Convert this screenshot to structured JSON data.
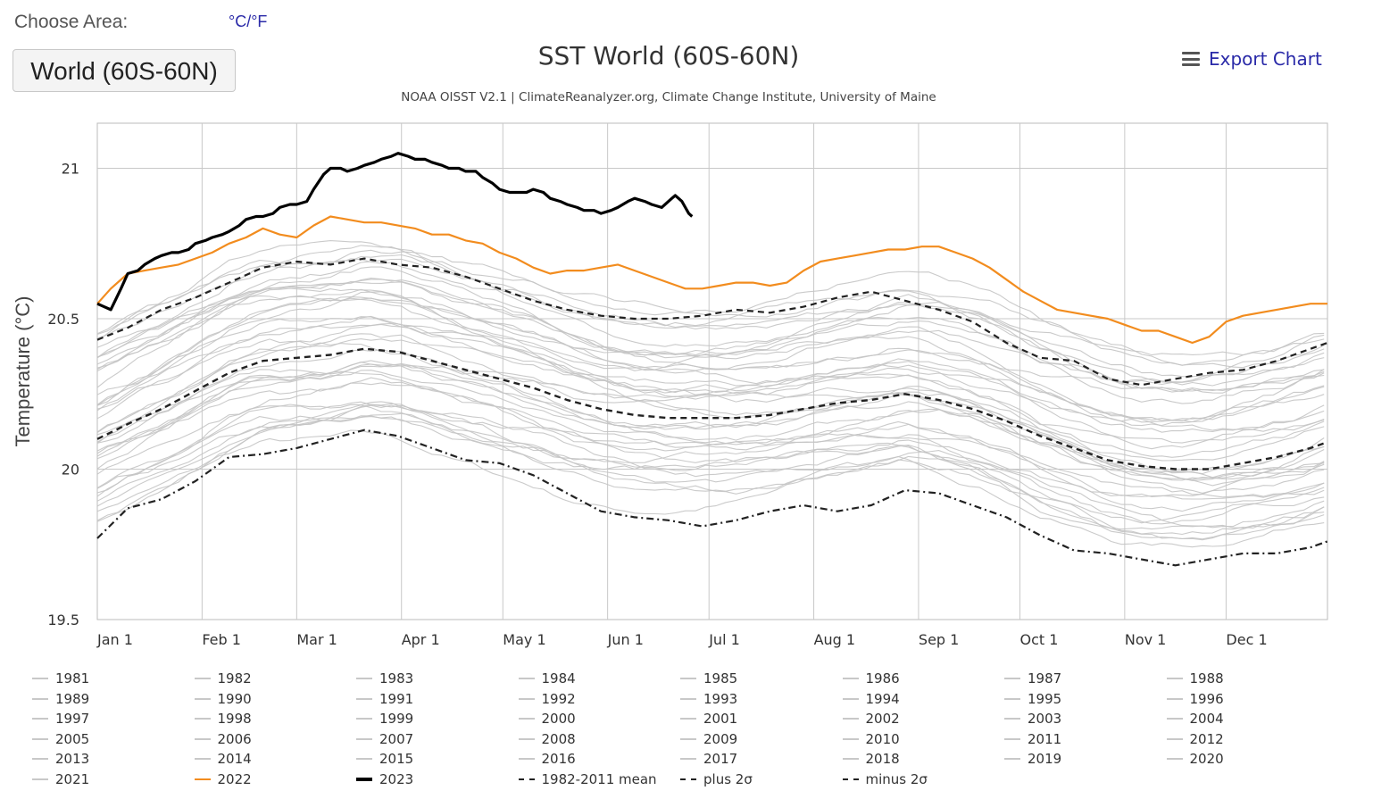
{
  "header": {
    "choose_area_label": "Choose Area:",
    "unit_toggle": "°C/°F",
    "area_button": "World (60S-60N)",
    "export_label": "Export Chart"
  },
  "chart_data": {
    "type": "line",
    "title": "SST World (60S-60N)",
    "subtitle": "NOAA OISST V2.1 | ClimateReanalyzer.org, Climate Change Institute, University of Maine",
    "ylabel": "Temperature (°C)",
    "xlabel": "",
    "ylim": [
      19.5,
      21.15
    ],
    "yticks": [
      19.5,
      20,
      20.5,
      21
    ],
    "ytick_labels": [
      "19.5",
      "20",
      "20.5",
      "21"
    ],
    "x_range_days": [
      1,
      365
    ],
    "xticks": [
      {
        "day": 1,
        "label": "Jan 1"
      },
      {
        "day": 32,
        "label": "Feb 1"
      },
      {
        "day": 60,
        "label": "Mar 1"
      },
      {
        "day": 91,
        "label": "Apr 1"
      },
      {
        "day": 121,
        "label": "May 1"
      },
      {
        "day": 152,
        "label": "Jun 1"
      },
      {
        "day": 182,
        "label": "Jul 1"
      },
      {
        "day": 213,
        "label": "Aug 1"
      },
      {
        "day": 244,
        "label": "Sep 1"
      },
      {
        "day": 274,
        "label": "Oct 1"
      },
      {
        "day": 305,
        "label": "Nov 1"
      },
      {
        "day": 335,
        "label": "Dec 1"
      }
    ],
    "grid": true,
    "legend_position": "bottom",
    "colors": {
      "background_years": "#c4c4c4",
      "y2022": "#f28c1e",
      "y2023": "#000000",
      "mean": "#222222"
    },
    "background_years": [
      "1981",
      "1982",
      "1983",
      "1984",
      "1985",
      "1986",
      "1987",
      "1988",
      "1989",
      "1990",
      "1991",
      "1992",
      "1993",
      "1994",
      "1995",
      "1996",
      "1997",
      "1998",
      "1999",
      "2000",
      "2001",
      "2002",
      "2003",
      "2004",
      "2005",
      "2006",
      "2007",
      "2008",
      "2009",
      "2010",
      "2011",
      "2012",
      "2013",
      "2014",
      "2015",
      "2016",
      "2017",
      "2018",
      "2019",
      "2020",
      "2021"
    ],
    "series": [
      {
        "name": "2022",
        "color": "#f28c1e",
        "style": "solid",
        "width": 2.2,
        "x": [
          1,
          5,
          10,
          15,
          20,
          25,
          30,
          35,
          40,
          45,
          50,
          55,
          60,
          65,
          70,
          75,
          80,
          85,
          90,
          95,
          100,
          105,
          110,
          115,
          120,
          125,
          130,
          135,
          140,
          145,
          150,
          155,
          160,
          165,
          170,
          175,
          180,
          185,
          190,
          195,
          200,
          205,
          210,
          215,
          220,
          225,
          230,
          235,
          240,
          245,
          250,
          255,
          260,
          265,
          270,
          275,
          280,
          285,
          290,
          295,
          300,
          305,
          310,
          315,
          320,
          325,
          330,
          335,
          340,
          345,
          350,
          355,
          360,
          365
        ],
        "y": [
          20.55,
          20.6,
          20.65,
          20.66,
          20.67,
          20.68,
          20.7,
          20.72,
          20.75,
          20.77,
          20.8,
          20.78,
          20.77,
          20.81,
          20.84,
          20.83,
          20.82,
          20.82,
          20.81,
          20.8,
          20.78,
          20.78,
          20.76,
          20.75,
          20.72,
          20.7,
          20.67,
          20.65,
          20.66,
          20.66,
          20.67,
          20.68,
          20.66,
          20.64,
          20.62,
          20.6,
          20.6,
          20.61,
          20.62,
          20.62,
          20.61,
          20.62,
          20.66,
          20.69,
          20.7,
          20.71,
          20.72,
          20.73,
          20.73,
          20.74,
          20.74,
          20.72,
          20.7,
          20.67,
          20.63,
          20.59,
          20.56,
          20.53,
          20.52,
          20.51,
          20.5,
          20.48,
          20.46,
          20.46,
          20.44,
          20.42,
          20.44,
          20.49,
          20.51,
          20.52,
          20.53,
          20.54,
          20.55,
          20.55
        ]
      },
      {
        "name": "2023",
        "color": "#000000",
        "style": "solid",
        "width": 3.2,
        "x": [
          1,
          3,
          5,
          8,
          10,
          13,
          15,
          18,
          20,
          23,
          25,
          28,
          30,
          33,
          35,
          38,
          40,
          43,
          45,
          48,
          50,
          53,
          55,
          58,
          60,
          63,
          65,
          68,
          70,
          73,
          75,
          78,
          80,
          83,
          85,
          88,
          90,
          93,
          95,
          98,
          100,
          103,
          105,
          108,
          110,
          113,
          115,
          118,
          120,
          123,
          125,
          128,
          130,
          133,
          135,
          138,
          140,
          143,
          145,
          148,
          150,
          153,
          155,
          158,
          160,
          163,
          165,
          168,
          170,
          171,
          172,
          173,
          174,
          175,
          176,
          177
        ],
        "y": [
          20.55,
          20.54,
          20.53,
          20.6,
          20.65,
          20.66,
          20.68,
          20.7,
          20.71,
          20.72,
          20.72,
          20.73,
          20.75,
          20.76,
          20.77,
          20.78,
          20.79,
          20.81,
          20.83,
          20.84,
          20.84,
          20.85,
          20.87,
          20.88,
          20.88,
          20.89,
          20.93,
          20.98,
          21.0,
          21.0,
          20.99,
          21.0,
          21.01,
          21.02,
          21.03,
          21.04,
          21.05,
          21.04,
          21.03,
          21.03,
          21.02,
          21.01,
          21.0,
          21.0,
          20.99,
          20.99,
          20.97,
          20.95,
          20.93,
          20.92,
          20.92,
          20.92,
          20.93,
          20.92,
          20.9,
          20.89,
          20.88,
          20.87,
          20.86,
          20.86,
          20.85,
          20.86,
          20.87,
          20.89,
          20.9,
          20.89,
          20.88,
          20.87,
          20.89,
          20.9,
          20.91,
          20.9,
          20.89,
          20.87,
          20.85,
          20.84
        ]
      },
      {
        "name": "1982-2011 mean",
        "color": "#222222",
        "style": "dashed",
        "width": 2.4,
        "x": [
          1,
          10,
          20,
          30,
          40,
          50,
          60,
          70,
          80,
          90,
          100,
          110,
          120,
          130,
          140,
          150,
          160,
          170,
          180,
          190,
          200,
          210,
          220,
          230,
          240,
          250,
          260,
          270,
          280,
          290,
          300,
          310,
          320,
          330,
          340,
          350,
          360,
          365
        ],
        "y": [
          20.1,
          20.15,
          20.2,
          20.26,
          20.32,
          20.36,
          20.37,
          20.38,
          20.4,
          20.39,
          20.36,
          20.33,
          20.3,
          20.27,
          20.23,
          20.2,
          20.18,
          20.17,
          20.17,
          20.17,
          20.18,
          20.2,
          20.22,
          20.23,
          20.25,
          20.23,
          20.2,
          20.16,
          20.11,
          20.07,
          20.03,
          20.01,
          20.0,
          20.0,
          20.02,
          20.04,
          20.07,
          20.09
        ]
      },
      {
        "name": "plus 2σ",
        "color": "#222222",
        "style": "dashed",
        "width": 2.2,
        "x": [
          1,
          10,
          20,
          30,
          40,
          50,
          60,
          70,
          80,
          90,
          100,
          110,
          120,
          130,
          140,
          150,
          160,
          170,
          180,
          190,
          200,
          210,
          220,
          230,
          240,
          250,
          260,
          270,
          280,
          290,
          300,
          310,
          320,
          330,
          340,
          350,
          360,
          365
        ],
        "y": [
          20.43,
          20.47,
          20.53,
          20.57,
          20.62,
          20.67,
          20.69,
          20.68,
          20.7,
          20.68,
          20.67,
          20.64,
          20.6,
          20.56,
          20.53,
          20.51,
          20.5,
          20.5,
          20.51,
          20.53,
          20.52,
          20.54,
          20.57,
          20.59,
          20.56,
          20.53,
          20.49,
          20.42,
          20.37,
          20.36,
          20.3,
          20.28,
          20.3,
          20.32,
          20.33,
          20.36,
          20.4,
          20.42
        ]
      },
      {
        "name": "minus 2σ",
        "color": "#222222",
        "style": "dashdot",
        "width": 2.2,
        "x": [
          1,
          10,
          20,
          30,
          40,
          50,
          60,
          70,
          80,
          90,
          100,
          110,
          120,
          130,
          140,
          150,
          160,
          170,
          180,
          190,
          200,
          210,
          220,
          230,
          240,
          250,
          260,
          270,
          280,
          290,
          300,
          310,
          320,
          330,
          340,
          350,
          360,
          365
        ],
        "y": [
          19.77,
          19.87,
          19.9,
          19.96,
          20.04,
          20.05,
          20.07,
          20.1,
          20.13,
          20.11,
          20.07,
          20.03,
          20.02,
          19.98,
          19.92,
          19.86,
          19.84,
          19.83,
          19.81,
          19.83,
          19.86,
          19.88,
          19.86,
          19.88,
          19.93,
          19.92,
          19.88,
          19.84,
          19.78,
          19.73,
          19.72,
          19.7,
          19.68,
          19.7,
          19.72,
          19.72,
          19.74,
          19.76
        ]
      }
    ],
    "legend": [
      "1981",
      "1982",
      "1983",
      "1984",
      "1985",
      "1986",
      "1987",
      "1988",
      "1989",
      "1990",
      "1991",
      "1992",
      "1993",
      "1994",
      "1995",
      "1996",
      "1997",
      "1998",
      "1999",
      "2000",
      "2001",
      "2002",
      "2003",
      "2004",
      "2005",
      "2006",
      "2007",
      "2008",
      "2009",
      "2010",
      "2011",
      "2012",
      "2013",
      "2014",
      "2015",
      "2016",
      "2017",
      "2018",
      "2019",
      "2020",
      "2021",
      "2022",
      "2023",
      "1982-2011 mean",
      "plus 2σ",
      "minus 2σ"
    ]
  }
}
